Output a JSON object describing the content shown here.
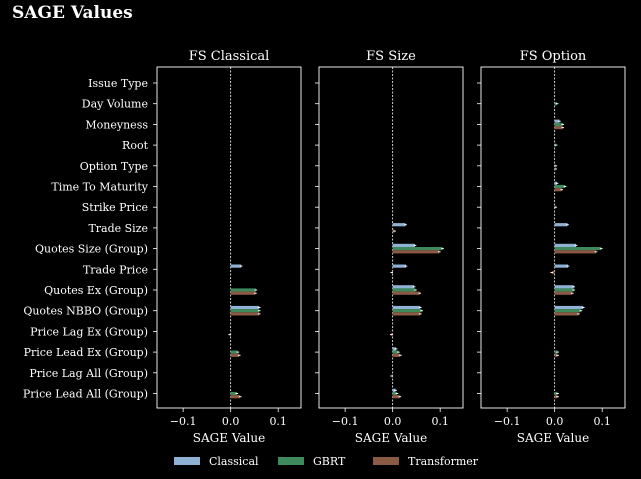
{
  "figure_title": "SAGE Values",
  "chart_data": {
    "type": "bar",
    "orientation": "horizontal",
    "categories": [
      "Issue Type",
      "Day Volume",
      "Moneyness",
      "Root",
      "Option Type",
      "Time To Maturity",
      "Strike Price",
      "Trade Size",
      "Quotes Size (Group)",
      "Trade Price",
      "Quotes Ex (Group)",
      "Quotes NBBO (Group)",
      "Price Lag Ex (Group)",
      "Price Lead Ex (Group)",
      "Price Lag All (Group)",
      "Price Lead All (Group)"
    ],
    "xlabel": "SAGE Value",
    "xlim": [
      -0.155,
      0.148
    ],
    "xticks": [
      -0.1,
      0.0,
      0.1
    ],
    "xtick_labels": [
      "−0.1",
      "0.0",
      "0.1"
    ],
    "legend": {
      "placement": "bottom",
      "entries": [
        "Classical",
        "GBRT",
        "Transformer"
      ]
    },
    "colors": {
      "Classical": "#8fb2d4",
      "GBRT": "#3f8a5c",
      "Transformer": "#8a5a45",
      "zero_line": "#ffffff"
    },
    "panels": [
      {
        "title": "FS Classical",
        "series": [
          {
            "name": "Classical",
            "values": [
              0,
              0,
              0,
              0,
              0,
              0,
              0,
              0,
              0,
              0.022,
              0,
              0.06,
              0,
              0,
              0,
              0
            ]
          },
          {
            "name": "GBRT",
            "values": [
              0,
              0,
              0,
              0,
              0,
              0,
              0,
              0,
              0,
              0,
              0.053,
              0.06,
              0,
              0.015,
              0,
              0.013
            ]
          },
          {
            "name": "Transformer",
            "values": [
              0,
              0,
              0,
              0,
              0,
              0,
              0,
              0,
              0,
              0,
              0.052,
              0.06,
              -0.002,
              0.018,
              0,
              0.02
            ]
          }
        ]
      },
      {
        "title": "FS Size",
        "series": [
          {
            "name": "Classical",
            "values": [
              0,
              0,
              0,
              0,
              0,
              0,
              0,
              0.027,
              0.047,
              0.028,
              0.045,
              0.058,
              0,
              0.007,
              0,
              0.006
            ]
          },
          {
            "name": "GBRT",
            "values": [
              0,
              0,
              0,
              0,
              0,
              0,
              0,
              0,
              0.105,
              0,
              0.048,
              0.061,
              0,
              0.012,
              0,
              0.009
            ]
          },
          {
            "name": "Transformer",
            "values": [
              0,
              0,
              0,
              0,
              0,
              0,
              0,
              0.004,
              0.098,
              -0.002,
              0.057,
              0.058,
              -0.003,
              0.016,
              -0.002,
              0.015
            ]
          }
        ]
      },
      {
        "title": "FS Option",
        "series": [
          {
            "name": "Classical",
            "values": [
              0,
              0,
              0.01,
              0,
              0,
              0.005,
              0,
              0.027,
              0.045,
              0.028,
              0.04,
              0.06,
              0,
              0,
              0,
              0
            ]
          },
          {
            "name": "GBRT",
            "values": [
              0,
              0.005,
              0.017,
              0.003,
              0.002,
              0.022,
              0.002,
              0,
              0.098,
              0,
              0.04,
              0.055,
              0,
              0.006,
              0,
              0.006
            ]
          },
          {
            "name": "Transformer",
            "values": [
              0,
              0,
              0.017,
              0,
              0.002,
              0.015,
              0,
              0,
              0.087,
              -0.006,
              0.037,
              0.05,
              0,
              0.006,
              0,
              0.006
            ]
          }
        ]
      }
    ]
  }
}
